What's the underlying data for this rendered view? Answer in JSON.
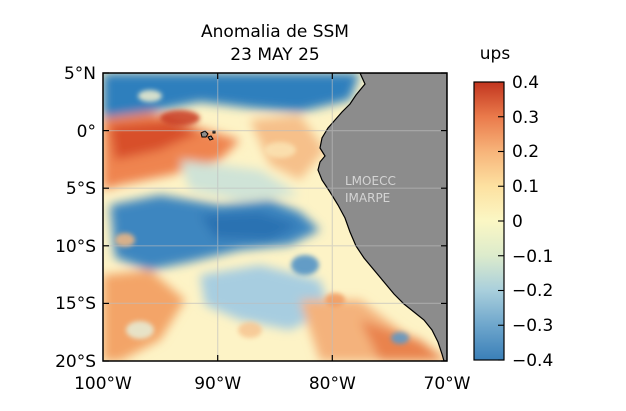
{
  "title_line1": "Anomalia de SSM",
  "title_line2": "23 MAY 25",
  "colorbar_unit": "ups",
  "lat_ticks": [
    "5°N",
    "0°",
    "5°S",
    "10°S",
    "15°S",
    "20°S"
  ],
  "lon_ticks": [
    "100°W",
    "90°W",
    "80°W",
    "70°W"
  ],
  "colorbar_ticks": [
    "0.4",
    "0.3",
    "0.2",
    "0.1",
    "0",
    "−0.1",
    "−0.2",
    "−0.3",
    "−0.4"
  ],
  "watermark_line1": "LMOECC",
  "watermark_line2": "IMARPE",
  "colors": {
    "land": "#8c8c8c",
    "fresh_strong": "#2b7bb9",
    "fresh_mid": "#7fb6d6",
    "neutral": "#fdf6c3",
    "salty_mid": "#f59c5e",
    "salty_strong": "#c73a1e"
  },
  "map_data": {
    "lon_range": [
      -100,
      -70
    ],
    "lat_range": [
      -20,
      5
    ],
    "color_range": [
      -0.4,
      0.4
    ]
  }
}
